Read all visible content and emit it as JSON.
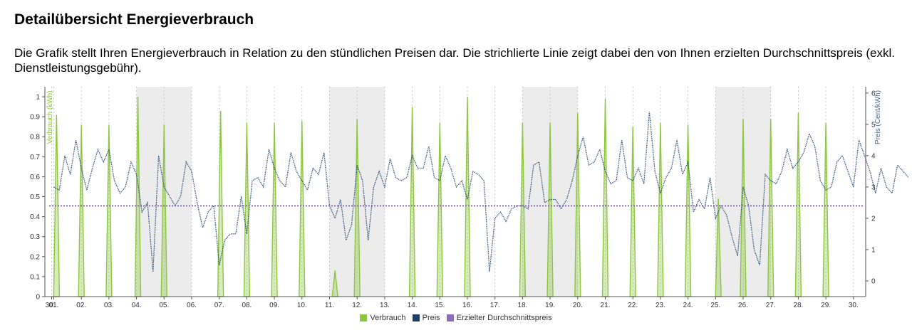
{
  "header": {
    "title": "Detailübersicht Energieverbrauch",
    "description": "Die Grafik stellt Ihren Energieverbrauch in Relation zu den stündlichen Preisen dar. Die strichlierte Linie zeigt dabei den von Ihnen erzielten Durchschnittspreis (exkl. Dienstleistungsgebühr)."
  },
  "colors": {
    "consumption": "#8dc63f",
    "price": "#1f3f6b",
    "average": "#8a6fb8",
    "weekend": "#ececec"
  },
  "chart_data": {
    "type": "line",
    "x_tick_labels": [
      "30.",
      "01.",
      "02.",
      "03.",
      "04.",
      "05.",
      "06.",
      "07.",
      "08.",
      "09.",
      "10.",
      "11.",
      "12.",
      "13.",
      "14.",
      "15.",
      "16.",
      "17.",
      "18.",
      "19.",
      "20.",
      "21.",
      "22.",
      "23.",
      "24.",
      "25.",
      "26.",
      "27.",
      "28.",
      "29.",
      "30."
    ],
    "y_left": {
      "label": "Verbrauch (kWh)",
      "ticks": [
        "0",
        "0.1",
        "0.2",
        "0.3",
        "0.4",
        "0.5",
        "0.6",
        "0.7",
        "0.8",
        "0.9",
        "1"
      ],
      "range": [
        0,
        1.05
      ]
    },
    "y_right": {
      "label": "Preis (Cent/kWh)",
      "ticks": [
        "0",
        "1",
        "2",
        "3",
        "4",
        "5",
        "6"
      ],
      "range": [
        -0.5,
        6.2
      ]
    },
    "weekend_bands": [
      [
        3,
        5
      ],
      [
        10,
        12
      ],
      [
        17,
        19
      ],
      [
        24,
        26
      ]
    ],
    "grid": "vertical dashed per day",
    "legend_position": "bottom",
    "series": [
      {
        "name": "Verbrauch",
        "axis": "left",
        "spikes": [
          {
            "day": 0.1,
            "value": 0.91
          },
          {
            "day": 1.0,
            "value": 0.86
          },
          {
            "day": 2.0,
            "value": 0.86
          },
          {
            "day": 3.05,
            "value": 1.0
          },
          {
            "day": 4.0,
            "value": 0.86
          },
          {
            "day": 6.05,
            "value": 0.93
          },
          {
            "day": 7.0,
            "value": 0.87
          },
          {
            "day": 8.0,
            "value": 0.87
          },
          {
            "day": 9.0,
            "value": 0.88
          },
          {
            "day": 10.2,
            "value": 0.13
          },
          {
            "day": 11.0,
            "value": 0.89
          },
          {
            "day": 13.0,
            "value": 0.95
          },
          {
            "day": 14.0,
            "value": 0.87
          },
          {
            "day": 15.0,
            "value": 1.0
          },
          {
            "day": 17.0,
            "value": 0.87
          },
          {
            "day": 18.0,
            "value": 0.87
          },
          {
            "day": 19.0,
            "value": 0.92
          },
          {
            "day": 20.0,
            "value": 0.99
          },
          {
            "day": 21.0,
            "value": 0.85
          },
          {
            "day": 22.0,
            "value": 0.87
          },
          {
            "day": 23.0,
            "value": 0.86
          },
          {
            "day": 24.1,
            "value": 0.49
          },
          {
            "day": 25.0,
            "value": 0.89
          },
          {
            "day": 26.0,
            "value": 0.89
          },
          {
            "day": 27.0,
            "value": 0.92
          },
          {
            "day": 28.0,
            "value": 0.87
          }
        ]
      },
      {
        "name": "Preis",
        "axis": "right",
        "points": [
          [
            0.0,
            3.0
          ],
          [
            0.2,
            2.9
          ],
          [
            0.4,
            4.0
          ],
          [
            0.6,
            3.4
          ],
          [
            0.8,
            4.5
          ],
          [
            1.0,
            3.6
          ],
          [
            1.2,
            2.9
          ],
          [
            1.4,
            3.6
          ],
          [
            1.6,
            4.2
          ],
          [
            1.8,
            3.8
          ],
          [
            2.0,
            4.2
          ],
          [
            2.2,
            3.2
          ],
          [
            2.4,
            2.8
          ],
          [
            2.6,
            3.0
          ],
          [
            2.8,
            3.8
          ],
          [
            3.0,
            3.4
          ],
          [
            3.2,
            2.2
          ],
          [
            3.4,
            2.5
          ],
          [
            3.6,
            0.3
          ],
          [
            3.8,
            4.0
          ],
          [
            4.0,
            3.0
          ],
          [
            4.2,
            2.7
          ],
          [
            4.4,
            2.4
          ],
          [
            4.6,
            2.7
          ],
          [
            4.8,
            3.8
          ],
          [
            5.0,
            3.5
          ],
          [
            5.2,
            2.5
          ],
          [
            5.4,
            1.7
          ],
          [
            5.6,
            2.2
          ],
          [
            5.8,
            2.4
          ],
          [
            6.0,
            0.5
          ],
          [
            6.2,
            1.3
          ],
          [
            6.4,
            1.5
          ],
          [
            6.6,
            1.5
          ],
          [
            6.8,
            2.7
          ],
          [
            7.0,
            1.5
          ],
          [
            7.2,
            3.2
          ],
          [
            7.4,
            3.3
          ],
          [
            7.6,
            3.0
          ],
          [
            7.8,
            4.2
          ],
          [
            8.0,
            3.6
          ],
          [
            8.2,
            3.2
          ],
          [
            8.4,
            3.0
          ],
          [
            8.6,
            4.1
          ],
          [
            8.8,
            3.5
          ],
          [
            9.0,
            3.2
          ],
          [
            9.2,
            2.9
          ],
          [
            9.4,
            3.6
          ],
          [
            9.6,
            3.4
          ],
          [
            9.8,
            4.1
          ],
          [
            10.0,
            2.4
          ],
          [
            10.2,
            2.0
          ],
          [
            10.4,
            2.6
          ],
          [
            10.6,
            1.3
          ],
          [
            10.8,
            1.8
          ],
          [
            11.0,
            3.7
          ],
          [
            11.2,
            3.2
          ],
          [
            11.4,
            1.3
          ],
          [
            11.6,
            3.0
          ],
          [
            11.8,
            3.5
          ],
          [
            12.0,
            3.0
          ],
          [
            12.2,
            3.9
          ],
          [
            12.4,
            3.3
          ],
          [
            12.6,
            3.2
          ],
          [
            12.8,
            3.3
          ],
          [
            13.0,
            4.0
          ],
          [
            13.2,
            3.6
          ],
          [
            13.4,
            3.6
          ],
          [
            13.6,
            4.3
          ],
          [
            13.8,
            3.3
          ],
          [
            14.0,
            3.2
          ],
          [
            14.2,
            4.0
          ],
          [
            14.4,
            3.6
          ],
          [
            14.6,
            3.0
          ],
          [
            14.8,
            3.2
          ],
          [
            15.0,
            2.6
          ],
          [
            15.2,
            3.5
          ],
          [
            15.4,
            3.4
          ],
          [
            15.6,
            3.2
          ],
          [
            15.8,
            0.3
          ],
          [
            16.0,
            2.0
          ],
          [
            16.2,
            2.2
          ],
          [
            16.4,
            1.9
          ],
          [
            16.6,
            2.3
          ],
          [
            16.8,
            2.4
          ],
          [
            17.0,
            2.4
          ],
          [
            17.2,
            2.3
          ],
          [
            17.4,
            3.7
          ],
          [
            17.6,
            3.8
          ],
          [
            17.8,
            2.5
          ],
          [
            18.0,
            2.6
          ],
          [
            18.2,
            2.6
          ],
          [
            18.4,
            2.3
          ],
          [
            18.6,
            2.6
          ],
          [
            18.8,
            3.2
          ],
          [
            19.0,
            4.0
          ],
          [
            19.2,
            4.6
          ],
          [
            19.4,
            3.7
          ],
          [
            19.6,
            3.8
          ],
          [
            19.8,
            4.2
          ],
          [
            20.0,
            3.5
          ],
          [
            20.2,
            3.1
          ],
          [
            20.4,
            3.2
          ],
          [
            20.6,
            4.5
          ],
          [
            20.8,
            3.3
          ],
          [
            21.0,
            3.2
          ],
          [
            21.2,
            3.6
          ],
          [
            21.4,
            3.1
          ],
          [
            21.6,
            5.4
          ],
          [
            21.8,
            3.5
          ],
          [
            22.0,
            2.8
          ],
          [
            22.2,
            3.3
          ],
          [
            22.4,
            3.6
          ],
          [
            22.6,
            4.5
          ],
          [
            22.8,
            3.4
          ],
          [
            23.0,
            3.8
          ],
          [
            23.2,
            2.2
          ],
          [
            23.4,
            2.6
          ],
          [
            23.6,
            2.3
          ],
          [
            23.8,
            3.3
          ],
          [
            24.0,
            2.0
          ],
          [
            24.2,
            2.4
          ],
          [
            24.4,
            2.1
          ],
          [
            24.6,
            1.4
          ],
          [
            24.8,
            0.8
          ],
          [
            25.0,
            3.0
          ],
          [
            25.2,
            2.4
          ],
          [
            25.4,
            1.0
          ],
          [
            25.6,
            0.5
          ],
          [
            25.8,
            3.4
          ],
          [
            26.0,
            3.2
          ],
          [
            26.2,
            3.1
          ],
          [
            26.4,
            3.5
          ],
          [
            26.6,
            4.2
          ],
          [
            26.8,
            3.6
          ],
          [
            27.0,
            3.8
          ],
          [
            27.2,
            4.1
          ],
          [
            27.4,
            4.7
          ],
          [
            27.6,
            4.3
          ],
          [
            27.8,
            3.2
          ],
          [
            28.0,
            2.9
          ],
          [
            28.2,
            3.0
          ],
          [
            28.4,
            3.8
          ],
          [
            28.6,
            4.0
          ],
          [
            28.8,
            3.5
          ],
          [
            29.0,
            3.0
          ],
          [
            29.2,
            4.5
          ],
          [
            29.4,
            4.0
          ],
          [
            29.6,
            3.5
          ],
          [
            29.8,
            2.8
          ],
          [
            30.0,
            3.6
          ],
          [
            30.2,
            3.0
          ],
          [
            30.4,
            2.8
          ],
          [
            30.6,
            3.7
          ],
          [
            30.8,
            3.5
          ],
          [
            31.0,
            3.3
          ]
        ]
      },
      {
        "name": "Erzielter Durchschnittspreis",
        "axis": "right",
        "value": 2.4
      }
    ]
  }
}
